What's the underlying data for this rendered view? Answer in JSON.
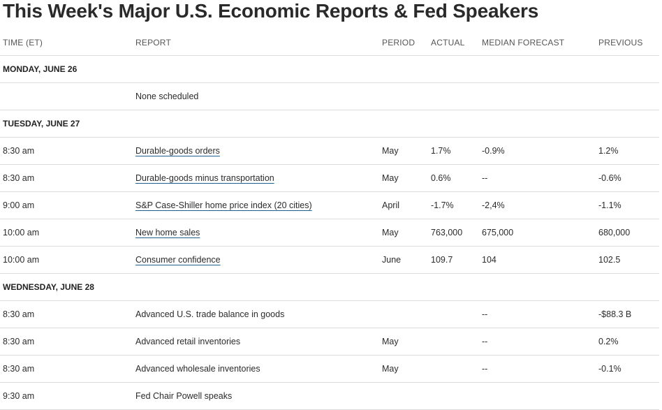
{
  "title": "This Week's Major U.S. Economic Reports & Fed Speakers",
  "headers": {
    "time": "TIME (ET)",
    "report": "REPORT",
    "period": "PERIOD",
    "actual": "ACTUAL",
    "median": "MEDIAN FORECAST",
    "previous": "PREVIOUS"
  },
  "days": [
    {
      "label": "MONDAY, JUNE 26",
      "rows": [
        {
          "time": "",
          "report": "None scheduled",
          "link": false,
          "period": "",
          "actual": "",
          "median": "",
          "previous": ""
        }
      ]
    },
    {
      "label": "TUESDAY, JUNE 27",
      "rows": [
        {
          "time": "8:30 am",
          "report": "Durable-goods orders",
          "link": true,
          "period": "May",
          "actual": "1.7%",
          "median": "-0.9%",
          "previous": "1.2%"
        },
        {
          "time": "8:30 am",
          "report": "Durable-goods minus transportation",
          "link": true,
          "period": "May",
          "actual": "0.6%",
          "median": "--",
          "previous": "-0.6%"
        },
        {
          "time": "9:00 am",
          "report": "S&P Case-Shiller home price index (20 cities)",
          "link": true,
          "period": "April",
          "actual": "-1.7%",
          "median": "-2,4%",
          "previous": "-1.1%"
        },
        {
          "time": "10:00 am",
          "report": "New home sales",
          "link": true,
          "period": "May",
          "actual": "763,000",
          "median": "675,000",
          "previous": "680,000"
        },
        {
          "time": "10:00 am",
          "report": "Consumer confidence",
          "link": true,
          "period": "June",
          "actual": "109.7",
          "median": "104",
          "previous": "102.5"
        }
      ]
    },
    {
      "label": "WEDNESDAY, JUNE 28",
      "rows": [
        {
          "time": "8:30 am",
          "report": "Advanced U.S. trade balance in goods",
          "link": false,
          "period": "",
          "actual": "",
          "median": "--",
          "previous": "-$88.3 B"
        },
        {
          "time": "8:30 am",
          "report": "Advanced retail inventories",
          "link": false,
          "period": "May",
          "actual": "",
          "median": "--",
          "previous": "0.2%"
        },
        {
          "time": "8:30 am",
          "report": "Advanced wholesale inventories",
          "link": false,
          "period": "May",
          "actual": "",
          "median": "--",
          "previous": "-0.1%"
        },
        {
          "time": "9:30 am",
          "report": "Fed Chair Powell speaks",
          "link": false,
          "period": "",
          "actual": "",
          "median": "",
          "previous": ""
        }
      ]
    }
  ]
}
